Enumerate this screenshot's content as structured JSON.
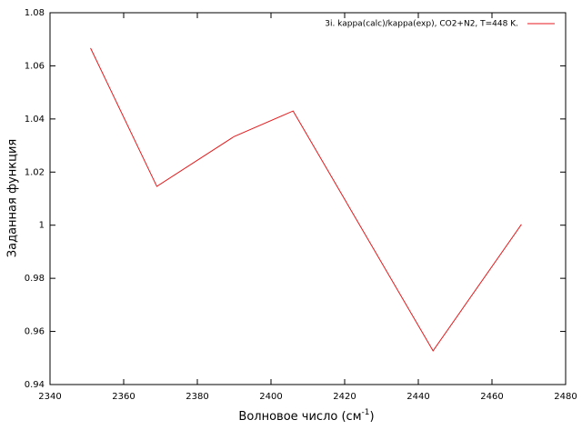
{
  "chart_data": {
    "type": "line",
    "x_label": {
      "text": "Волновое число (см",
      "sup": "-1",
      "tail": ")"
    },
    "y_label": "Заданная функция",
    "x": [
      2351,
      2369,
      2390,
      2406,
      2444,
      2468
    ],
    "series": [
      {
        "name": "3i. kappa(calc)/kappa(exp),  CO2+N2, T=448 K.",
        "color": "#e41a1c",
        "values": [
          1.0667,
          1.0146,
          1.0334,
          1.043,
          0.9527,
          1.0003
        ]
      }
    ],
    "xlim": [
      2340,
      2480
    ],
    "xticks": [
      2340,
      2360,
      2380,
      2400,
      2420,
      2440,
      2460,
      2480
    ],
    "ylim": [
      0.94,
      1.08
    ],
    "yticks": [
      0.94,
      0.96,
      0.98,
      1,
      1.02,
      1.04,
      1.06,
      1.08
    ],
    "grid": false,
    "legend": "top-right"
  }
}
